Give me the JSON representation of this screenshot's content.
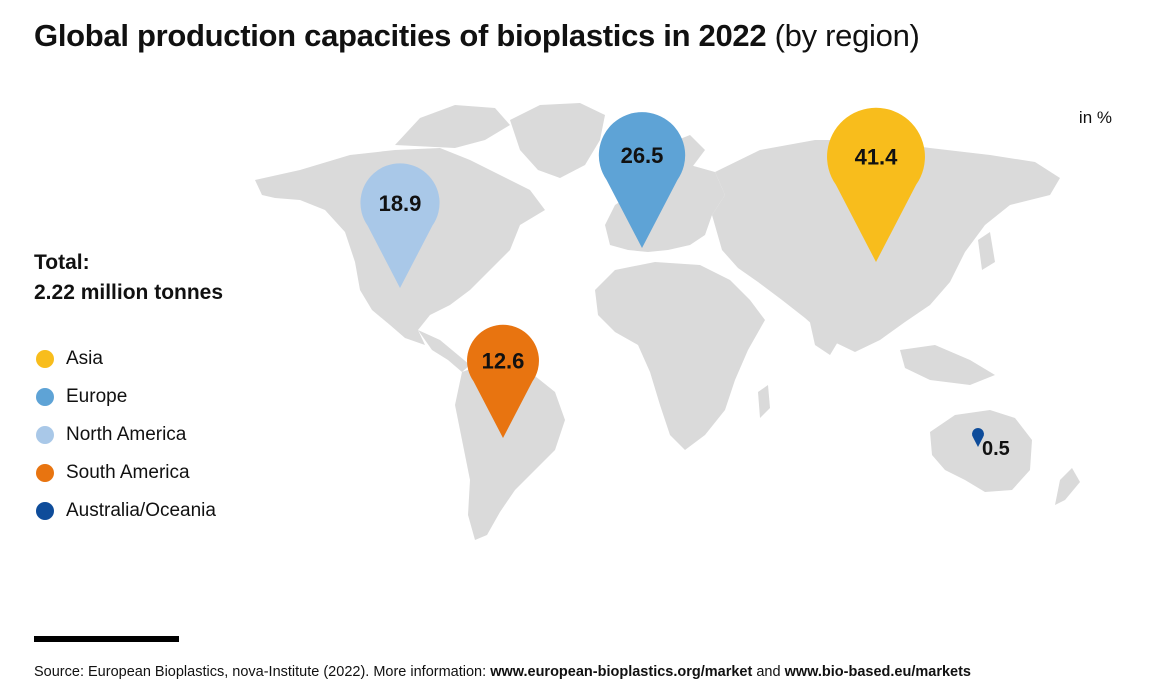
{
  "title": {
    "bold": "Global production capacities of bioplastics in 2022",
    "light": "(by region)"
  },
  "unit_label": "in %",
  "total": {
    "label": "Total:",
    "value": "2.22 million tonnes"
  },
  "source": {
    "prefix": "Source: European Bioplastics, nova-Institute (2022). More information:",
    "link1": "www.european-bioplastics.org/market",
    "conj": "and",
    "link2": "www.bio-based.eu/markets"
  },
  "chart_data": {
    "type": "map",
    "unit": "%",
    "total": "2.22 million tonnes",
    "series": [
      {
        "name": "Asia",
        "value": 41.4,
        "label": "41.4",
        "color": "#F8BD1C"
      },
      {
        "name": "Europe",
        "value": 26.5,
        "label": "26.5",
        "color": "#5EA3D6"
      },
      {
        "name": "North America",
        "value": 18.9,
        "label": "18.9",
        "color": "#A9C8E8"
      },
      {
        "name": "South America",
        "value": 12.6,
        "label": "12.6",
        "color": "#E87410"
      },
      {
        "name": "Australia/Oceania",
        "value": 0.5,
        "label": "0.5",
        "color": "#0E4C9A"
      }
    ]
  }
}
